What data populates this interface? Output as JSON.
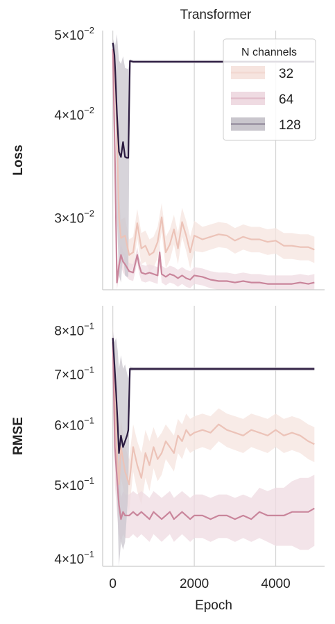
{
  "chart_data": [
    {
      "type": "line",
      "title": "Transformer",
      "xlabel": "",
      "ylabel": "Loss",
      "yscale": "log",
      "xlim": [
        -250,
        5200
      ],
      "ylim": [
        0.0245,
        0.0505
      ],
      "x_ticks": [
        0,
        2000,
        4000
      ],
      "grid": "vertical",
      "y_ticks": [
        {
          "value": 0.05,
          "mant": "5",
          "exp": "−2"
        },
        {
          "value": 0.04,
          "mant": "4",
          "exp": "−2"
        },
        {
          "value": 0.03,
          "mant": "3",
          "exp": "−2"
        }
      ],
      "legend": {
        "title": "N channels",
        "placement": "top-right"
      },
      "series": [
        {
          "name": "32",
          "color": "#ecc3b8",
          "band_color": "#f6e4df",
          "x": [
            0,
            50,
            100,
            150,
            200,
            300,
            400,
            500,
            600,
            700,
            800,
            900,
            1000,
            1100,
            1200,
            1300,
            1400,
            1500,
            1600,
            1700,
            1800,
            1900,
            2000,
            2200,
            2400,
            2600,
            2800,
            3000,
            3200,
            3400,
            3600,
            3800,
            4000,
            4200,
            4400,
            4600,
            4800,
            4950
          ],
          "values": [
            0.048,
            0.045,
            0.038,
            0.03,
            0.0283,
            0.0285,
            0.027,
            0.0272,
            0.0295,
            0.0275,
            0.0277,
            0.027,
            0.0272,
            0.028,
            0.03,
            0.0272,
            0.0278,
            0.029,
            0.0275,
            0.0296,
            0.0285,
            0.0272,
            0.0285,
            0.0282,
            0.0284,
            0.0286,
            0.0285,
            0.0281,
            0.0284,
            0.0282,
            0.0282,
            0.028,
            0.0281,
            0.0277,
            0.0277,
            0.0276,
            0.0276,
            0.0274
          ],
          "band": [
            0.0012,
            0.0012,
            0.003,
            0.002,
            0.0015,
            0.0015,
            0.0012,
            0.0012,
            0.0012,
            0.0012,
            0.0012,
            0.0012,
            0.0012,
            0.0012,
            0.0012,
            0.0012,
            0.0012,
            0.0012,
            0.0012,
            0.0012,
            0.0012,
            0.0012,
            0.0012,
            0.001,
            0.001,
            0.001,
            0.001,
            0.001,
            0.001,
            0.001,
            0.001,
            0.001,
            0.001,
            0.001,
            0.001,
            0.001,
            0.001,
            0.001
          ]
        },
        {
          "name": "64",
          "color": "#c9859b",
          "band_color": "#efdbe2",
          "x": [
            0,
            50,
            100,
            150,
            200,
            250,
            300,
            400,
            500,
            600,
            650,
            700,
            800,
            900,
            1000,
            1100,
            1150,
            1200,
            1300,
            1400,
            1500,
            1600,
            1700,
            1800,
            1900,
            2000,
            2200,
            2400,
            2600,
            2800,
            3000,
            3200,
            3400,
            3600,
            3800,
            4000,
            4200,
            4400,
            4600,
            4800,
            4950
          ],
          "values": [
            0.048,
            0.036,
            0.025,
            0.0262,
            0.027,
            0.0265,
            0.0263,
            0.0258,
            0.0257,
            0.027,
            0.0262,
            0.0257,
            0.0256,
            0.0257,
            0.0256,
            0.0255,
            0.0272,
            0.0256,
            0.0254,
            0.0256,
            0.0255,
            0.0253,
            0.0255,
            0.0253,
            0.0252,
            0.0255,
            0.0254,
            0.0252,
            0.0251,
            0.0251,
            0.025,
            0.0251,
            0.025,
            0.025,
            0.0249,
            0.0249,
            0.0249,
            0.0249,
            0.025,
            0.0249,
            0.025
          ],
          "band": [
            0.0015,
            0.004,
            0.0008,
            0.0008,
            0.0008,
            0.0008,
            0.0008,
            0.0006,
            0.0006,
            0.0006,
            0.0006,
            0.0006,
            0.0006,
            0.0006,
            0.0006,
            0.0006,
            0.0006,
            0.0006,
            0.0006,
            0.0006,
            0.0006,
            0.0006,
            0.0006,
            0.0006,
            0.0006,
            0.0006,
            0.0006,
            0.0006,
            0.0006,
            0.0006,
            0.0006,
            0.0006,
            0.0006,
            0.0006,
            0.0006,
            0.0006,
            0.0006,
            0.0006,
            0.0006,
            0.0006,
            0.0006
          ]
        },
        {
          "name": "128",
          "color": "#2b1a3f",
          "band_color": "#c9c6cd",
          "x": [
            0,
            40,
            60,
            100,
            150,
            200,
            250,
            300,
            350,
            380,
            420,
            500,
            1000,
            2000,
            3000,
            4000,
            4950
          ],
          "values": [
            0.0488,
            0.0472,
            0.045,
            0.04,
            0.036,
            0.0355,
            0.037,
            0.0355,
            0.0354,
            0.0354,
            0.0464,
            0.0463,
            0.0463,
            0.0463,
            0.0463,
            0.0463,
            0.0463
          ],
          "band": [
            0.0006,
            0.0015,
            0.0035,
            0.01,
            0.0105,
            0.0105,
            0.01,
            0.01,
            0.01,
            0.01,
            0.0002,
            0.0002,
            0.0002,
            0.0002,
            0.0002,
            0.0002,
            0.0002
          ]
        }
      ]
    },
    {
      "type": "line",
      "title": "",
      "xlabel": "Epoch",
      "ylabel": "RMSE",
      "yscale": "log",
      "xlim": [
        -250,
        5200
      ],
      "ylim": [
        0.39,
        0.86
      ],
      "x_ticks": [
        0,
        2000,
        4000
      ],
      "grid": "vertical",
      "y_ticks": [
        {
          "value": 0.8,
          "mant": "8",
          "exp": "−1"
        },
        {
          "value": 0.7,
          "mant": "7",
          "exp": "−1"
        },
        {
          "value": 0.6,
          "mant": "6",
          "exp": "−1"
        },
        {
          "value": 0.5,
          "mant": "5",
          "exp": "−1"
        },
        {
          "value": 0.4,
          "mant": "4",
          "exp": "−1"
        }
      ],
      "series": [
        {
          "name": "32",
          "color": "#ecc3b8",
          "band_color": "#f6e4df",
          "x": [
            0,
            50,
            100,
            150,
            200,
            300,
            400,
            500,
            600,
            700,
            800,
            900,
            1000,
            1100,
            1200,
            1300,
            1400,
            1500,
            1600,
            1700,
            1800,
            1900,
            2000,
            2200,
            2400,
            2600,
            2800,
            3000,
            3200,
            3400,
            3600,
            3800,
            4000,
            4200,
            4400,
            4600,
            4800,
            4950
          ],
          "values": [
            0.78,
            0.66,
            0.55,
            0.5,
            0.56,
            0.52,
            0.5,
            0.56,
            0.53,
            0.51,
            0.55,
            0.53,
            0.56,
            0.54,
            0.55,
            0.57,
            0.56,
            0.55,
            0.58,
            0.57,
            0.59,
            0.58,
            0.585,
            0.59,
            0.585,
            0.6,
            0.59,
            0.585,
            0.58,
            0.59,
            0.585,
            0.58,
            0.59,
            0.58,
            0.585,
            0.58,
            0.57,
            0.565
          ],
          "band": [
            0.03,
            0.06,
            0.06,
            0.05,
            0.05,
            0.04,
            0.04,
            0.04,
            0.04,
            0.04,
            0.04,
            0.04,
            0.035,
            0.035,
            0.035,
            0.03,
            0.03,
            0.03,
            0.03,
            0.03,
            0.03,
            0.03,
            0.03,
            0.03,
            0.03,
            0.03,
            0.03,
            0.03,
            0.03,
            0.03,
            0.03,
            0.03,
            0.03,
            0.03,
            0.03,
            0.03,
            0.03,
            0.03
          ]
        },
        {
          "name": "64",
          "color": "#c9859b",
          "band_color": "#efdbe2",
          "x": [
            0,
            50,
            100,
            150,
            200,
            250,
            300,
            400,
            500,
            600,
            700,
            800,
            900,
            1000,
            1100,
            1200,
            1300,
            1400,
            1500,
            1600,
            1700,
            1800,
            1900,
            2000,
            2200,
            2400,
            2600,
            2800,
            3000,
            3200,
            3400,
            3600,
            3800,
            4000,
            4200,
            4400,
            4600,
            4800,
            4950
          ],
          "values": [
            0.77,
            0.56,
            0.51,
            0.47,
            0.45,
            0.46,
            0.455,
            0.455,
            0.46,
            0.455,
            0.46,
            0.455,
            0.45,
            0.46,
            0.455,
            0.45,
            0.455,
            0.46,
            0.45,
            0.455,
            0.46,
            0.455,
            0.45,
            0.455,
            0.455,
            0.45,
            0.455,
            0.455,
            0.45,
            0.455,
            0.45,
            0.46,
            0.455,
            0.455,
            0.455,
            0.46,
            0.46,
            0.46,
            0.465
          ],
          "band": [
            0.02,
            0.06,
            0.05,
            0.04,
            0.03,
            0.03,
            0.03,
            0.03,
            0.03,
            0.03,
            0.03,
            0.03,
            0.03,
            0.03,
            0.03,
            0.03,
            0.03,
            0.03,
            0.03,
            0.03,
            0.03,
            0.03,
            0.03,
            0.03,
            0.03,
            0.03,
            0.03,
            0.03,
            0.03,
            0.03,
            0.03,
            0.035,
            0.035,
            0.04,
            0.04,
            0.045,
            0.05,
            0.05,
            0.05
          ]
        },
        {
          "name": "128",
          "color": "#2b1a3f",
          "band_color": "#c9c6cd",
          "x": [
            0,
            40,
            80,
            120,
            150,
            200,
            250,
            300,
            350,
            380,
            420,
            500,
            1000,
            2000,
            3000,
            4000,
            4950
          ],
          "values": [
            0.78,
            0.72,
            0.66,
            0.6,
            0.55,
            0.58,
            0.56,
            0.57,
            0.58,
            0.59,
            0.71,
            0.71,
            0.71,
            0.71,
            0.71,
            0.71,
            0.71
          ],
          "band": [
            0.02,
            0.05,
            0.12,
            0.15,
            0.16,
            0.16,
            0.15,
            0.15,
            0.12,
            0.1,
            0.005,
            0.004,
            0.004,
            0.004,
            0.004,
            0.004,
            0.004
          ]
        }
      ]
    }
  ]
}
